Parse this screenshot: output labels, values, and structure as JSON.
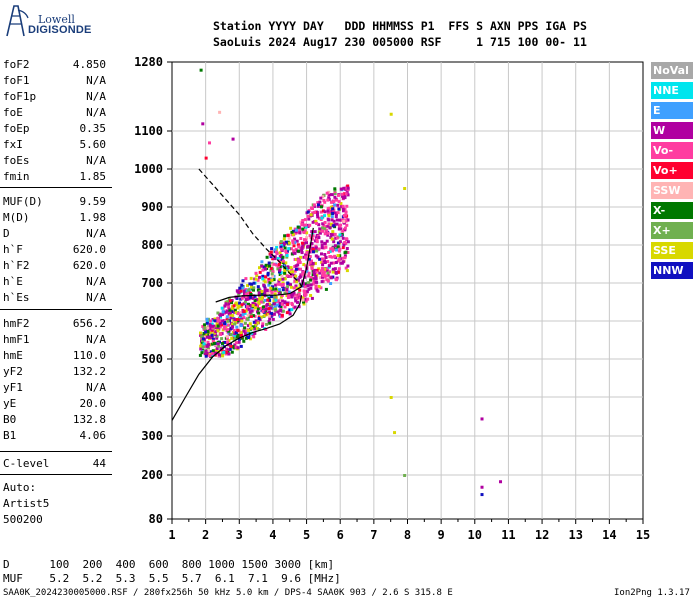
{
  "logo": {
    "line1": "Lowell",
    "line2": "DIGISONDE"
  },
  "header": {
    "line1": "Station YYYY DAY   DDD HHMMSS P1  FFS S AXN PPS IGA PS",
    "line2": "SaoLuis 2024 Aug17 230 005000 RSF     1 715 100 00- 11"
  },
  "params": [
    {
      "name": "foF2",
      "value": "4.850"
    },
    {
      "name": "foF1",
      "value": "N/A"
    },
    {
      "name": "foF1p",
      "value": "N/A"
    },
    {
      "name": "foE",
      "value": "N/A"
    },
    {
      "name": "foEp",
      "value": "0.35"
    },
    {
      "name": "fxI",
      "value": "5.60"
    },
    {
      "name": "foEs",
      "value": "N/A"
    },
    {
      "name": "fmin",
      "value": "1.85"
    },
    {
      "name": "MUF(D)",
      "value": "9.59"
    },
    {
      "name": "M(D)",
      "value": "1.98"
    },
    {
      "name": "D",
      "value": "N/A"
    },
    {
      "name": "h`F",
      "value": "620.0"
    },
    {
      "name": "h`F2",
      "value": "620.0"
    },
    {
      "name": "h`E",
      "value": "N/A"
    },
    {
      "name": "h`Es",
      "value": "N/A"
    },
    {
      "name": "hmF2",
      "value": "656.2"
    },
    {
      "name": "hmF1",
      "value": "N/A"
    },
    {
      "name": "hmE",
      "value": "110.0"
    },
    {
      "name": "yF2",
      "value": "132.2"
    },
    {
      "name": "yF1",
      "value": "N/A"
    },
    {
      "name": "yE",
      "value": "20.0"
    },
    {
      "name": "B0",
      "value": "132.8"
    },
    {
      "name": "B1",
      "value": "4.06"
    },
    {
      "name": "C-level",
      "value": "44"
    }
  ],
  "auto": {
    "line1": "Auto:",
    "line2": "Artist5",
    "line3": "500200"
  },
  "legend": [
    {
      "label": "NoVal",
      "color": "#a8a8a8"
    },
    {
      "label": "NNE",
      "color": "#00e5ee"
    },
    {
      "label": "E",
      "color": "#3fa0ff"
    },
    {
      "label": "W",
      "color": "#b000a0"
    },
    {
      "label": "Vo-",
      "color": "#ff3ca0"
    },
    {
      "label": "Vo+",
      "color": "#ff0030"
    },
    {
      "label": "SSW",
      "color": "#ffb4b4"
    },
    {
      "label": "X-",
      "color": "#007800"
    },
    {
      "label": "X+",
      "color": "#70b050"
    },
    {
      "label": "SSE",
      "color": "#d8d800"
    },
    {
      "label": "NNW",
      "color": "#1010c0"
    }
  ],
  "footer": {
    "d_row": "D      100  200  400  600  800 1000 1500 3000 [km]",
    "muf_row": "MUF    5.2  5.2  5.3  5.5  5.7  6.1  7.1  9.6 [MHz]",
    "file_info": "SAA0K_2024230005000.RSF / 280fx256h 50 kHz 5.0 km / DPS-4 SAA0K 903 / 2.6 S 315.8 E",
    "version": "Ion2Png 1.3.17"
  },
  "chart_data": {
    "type": "scatter",
    "xlabel": "",
    "ylabel": "",
    "xlim": [
      1,
      15
    ],
    "ylim": [
      80,
      1280
    ],
    "x_ticks": [
      1,
      2,
      3,
      4,
      5,
      6,
      7,
      8,
      9,
      10,
      11,
      12,
      13,
      14,
      15
    ],
    "y_ticks": [
      80,
      200,
      300,
      400,
      500,
      600,
      700,
      800,
      900,
      1000,
      1100,
      1280
    ],
    "grid": true,
    "curves": [
      {
        "name": "",
        "style": "solid",
        "points": [
          [
            1.0,
            340
          ],
          [
            1.4,
            400
          ],
          [
            1.8,
            460
          ],
          [
            2.2,
            505
          ],
          [
            2.6,
            535
          ],
          [
            3.0,
            555
          ],
          [
            3.4,
            570
          ],
          [
            3.8,
            580
          ],
          [
            4.2,
            592
          ],
          [
            4.6,
            615
          ],
          [
            4.8,
            645
          ],
          [
            4.85,
            668
          ]
        ]
      },
      {
        "name": "",
        "style": "solid",
        "points": [
          [
            2.3,
            650
          ],
          [
            2.7,
            662
          ],
          [
            3.1,
            666
          ],
          [
            3.6,
            668
          ],
          [
            4.1,
            668
          ],
          [
            4.5,
            672
          ],
          [
            4.85,
            690
          ],
          [
            5.0,
            740
          ],
          [
            5.1,
            790
          ],
          [
            5.2,
            845
          ]
        ]
      },
      {
        "name": "",
        "style": "dashed",
        "points": [
          [
            1.8,
            1000
          ],
          [
            2.2,
            960
          ],
          [
            2.6,
            920
          ],
          [
            3.0,
            880
          ],
          [
            3.4,
            830
          ],
          [
            3.8,
            790
          ],
          [
            4.2,
            755
          ],
          [
            4.5,
            725
          ],
          [
            4.8,
            700
          ],
          [
            4.85,
            690
          ]
        ]
      }
    ],
    "outliers": [
      {
        "x": 1.85,
        "y": 1260,
        "c": "#007800"
      },
      {
        "x": 1.9,
        "y": 1120,
        "c": "#b000a0"
      },
      {
        "x": 2.1,
        "y": 1070,
        "c": "#ff3ca0"
      },
      {
        "x": 2.4,
        "y": 1150,
        "c": "#ffb4b4"
      },
      {
        "x": 2.8,
        "y": 1080,
        "c": "#b000a0"
      },
      {
        "x": 2.0,
        "y": 1030,
        "c": "#ff0030"
      },
      {
        "x": 7.5,
        "y": 1145,
        "c": "#d8d800"
      },
      {
        "x": 7.9,
        "y": 950,
        "c": "#d8d800"
      },
      {
        "x": 7.5,
        "y": 400,
        "c": "#d8d800"
      },
      {
        "x": 7.6,
        "y": 310,
        "c": "#d8d800"
      },
      {
        "x": 7.9,
        "y": 200,
        "c": "#70b050"
      },
      {
        "x": 10.2,
        "y": 345,
        "c": "#b000a0"
      },
      {
        "x": 10.2,
        "y": 168,
        "c": "#b000a0"
      },
      {
        "x": 10.2,
        "y": 148,
        "c": "#1010c0"
      },
      {
        "x": 10.75,
        "y": 183,
        "c": "#b000a0"
      }
    ]
  }
}
